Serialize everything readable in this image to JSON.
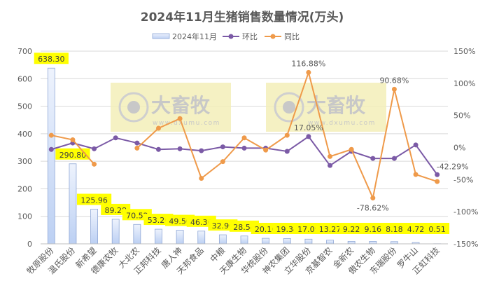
{
  "chart_data": {
    "type": "bar",
    "title": "2024年11月生猪销售数量情况(万头)",
    "categories": [
      "牧原股份",
      "温氏股份",
      "新希望",
      "德康农牧",
      "大北农",
      "正邦科技",
      "唐人神",
      "天邦食品",
      "中粮",
      "天康生物",
      "华统股份",
      "神农集团",
      "立华股份",
      "京基智农",
      "金新农",
      "傲农生物",
      "东瑞股份",
      "罗牛山",
      "正虹科技"
    ],
    "series": [
      {
        "name": "2024年11月",
        "type": "bar",
        "axis": "left",
        "color": "#c9d9f5",
        "values": [
          638.3,
          290.8,
          125.96,
          89.28,
          70.52,
          53.26,
          49.5,
          46.3,
          32.9,
          28.54,
          20.1,
          19.34,
          17.09,
          13.27,
          9.22,
          9.16,
          8.18,
          4.72,
          0.51
        ],
        "labels": [
          "638.30",
          "290.80",
          "125.96",
          "89.28",
          "70.52",
          "53.26",
          "49.50",
          "46.30",
          "32.90",
          "28.54",
          "20.10",
          "19.34",
          "17.09",
          "13.27",
          "9.22",
          "9.16",
          "8.18",
          "4.72",
          "0.51"
        ]
      },
      {
        "name": "环比",
        "type": "line",
        "axis": "right",
        "color": "#7b5aa6",
        "values": [
          -3,
          7,
          -2,
          15,
          7,
          -3,
          -2,
          -5,
          1,
          -1,
          -1,
          -6,
          17.05,
          -28,
          -6,
          -17,
          -17,
          4,
          -42.29
        ]
      },
      {
        "name": "同比",
        "type": "line",
        "axis": "right",
        "color": "#ef9a4a",
        "values": [
          19,
          12,
          -26,
          null,
          -1,
          30,
          45,
          -48,
          -22,
          15,
          -4,
          19,
          116.88,
          -14,
          -3,
          -78.62,
          90.68,
          -42,
          -53
        ]
      }
    ],
    "annotations": [
      {
        "series": 2,
        "index": 12,
        "text": "116.88%"
      },
      {
        "series": 1,
        "index": 12,
        "text": "17.05%"
      },
      {
        "series": 2,
        "index": 15,
        "text": "-78.62%"
      },
      {
        "series": 2,
        "index": 16,
        "text": "90.68%"
      },
      {
        "series": 1,
        "index": 18,
        "text": "-42.29%"
      }
    ],
    "left_axis": {
      "ylim": [
        0,
        700
      ],
      "ticks": [
        "0",
        "100",
        "200",
        "300",
        "400",
        "500",
        "600",
        "700"
      ]
    },
    "right_axis": {
      "ylim": [
        -150,
        150
      ],
      "ticks": [
        "-150%",
        "-100%",
        "-50%",
        "0%",
        "50%",
        "100%",
        "150%"
      ]
    },
    "grid": true,
    "legend": "top-center",
    "watermark": {
      "brand": "大畜牧",
      "url": "www.dxumu.com"
    }
  }
}
